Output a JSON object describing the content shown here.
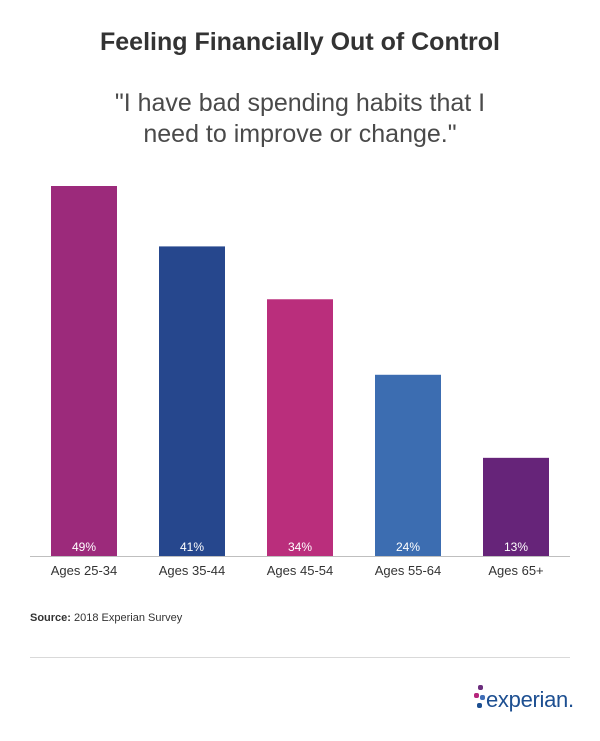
{
  "title": "Feeling Financially Out of Control",
  "subtitle_line1": "\"I have bad spending habits that I",
  "subtitle_line2": "need to improve or change.\"",
  "source_label": "Source:",
  "source_text": "2018 Experian Survey",
  "brand": "experian.",
  "chart_data": {
    "type": "bar",
    "categories": [
      "Ages 25-34",
      "Ages 35-44",
      "Ages 45-54",
      "Ages 55-64",
      "Ages 65+"
    ],
    "values": [
      49,
      41,
      34,
      24,
      13
    ],
    "value_labels": [
      "49%",
      "41%",
      "34%",
      "24%",
      "13%"
    ],
    "colors": [
      "#9c2a7b",
      "#26478d",
      "#ba2e7c",
      "#3c6db1",
      "#662479"
    ],
    "unit": "%",
    "title": "Feeling Financially Out of Control",
    "xlabel": "",
    "ylabel": "",
    "ylim": [
      0,
      49
    ]
  }
}
